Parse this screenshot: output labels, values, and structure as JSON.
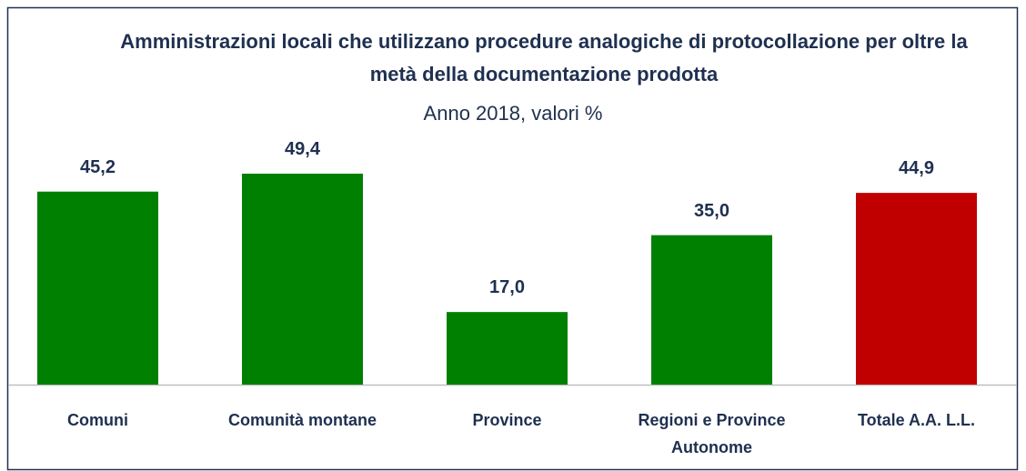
{
  "chart_data": {
    "type": "bar",
    "title": "Amministrazioni locali che utilizzano procedure analogiche di protocollazione per oltre la metà della documentazione prodotta",
    "subtitle": "Anno 2018, valori %",
    "categories": [
      "Comuni",
      "Comunità montane",
      "Province",
      "Regioni e Province Autonome",
      "Totale A.A. L.L."
    ],
    "values": [
      45.2,
      49.4,
      17.0,
      35.0,
      44.9
    ],
    "value_labels": [
      "45,2",
      "49,4",
      "17,0",
      "35,0",
      "44,9"
    ],
    "colors": [
      "#008000",
      "#008000",
      "#008000",
      "#008000",
      "#c00000"
    ]
  }
}
